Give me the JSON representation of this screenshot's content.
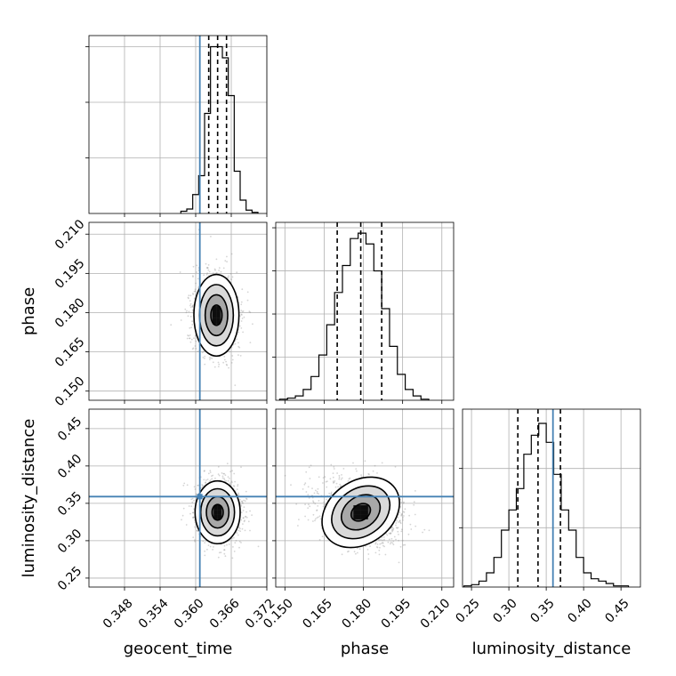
{
  "chart_data": {
    "type": "corner",
    "parameters": [
      "geocent_time",
      "phase",
      "luminosity_distance"
    ],
    "axis_labels": {
      "geocent_time": "geocent_time",
      "phase": "phase",
      "luminosity_distance": "luminosity_distance"
    },
    "ranges": {
      "geocent_time": [
        0.342,
        0.372
      ],
      "phase": [
        0.1465,
        0.2145
      ],
      "luminosity_distance": [
        0.238,
        0.476
      ]
    },
    "ticks": {
      "geocent_time": {
        "values": [
          0.348,
          0.354,
          0.36,
          0.366,
          0.372
        ],
        "labels": [
          "0.348",
          "0.354",
          "0.360",
          "0.366",
          "0.372"
        ]
      },
      "phase": {
        "values": [
          0.15,
          0.165,
          0.18,
          0.195,
          0.21
        ],
        "labels": [
          "0.150",
          "0.165",
          "0.180",
          "0.195",
          "0.210"
        ]
      },
      "luminosity_distance": {
        "values": [
          0.25,
          0.3,
          0.35,
          0.4,
          0.45
        ],
        "labels": [
          "0.25",
          "0.30",
          "0.35",
          "0.40",
          "0.45"
        ]
      }
    },
    "truths": {
      "geocent_time": 0.3607,
      "luminosity_distance": 0.359
    },
    "truth_color": "#4682b4",
    "quantiles": {
      "geocent_time": [
        0.3622,
        0.3637,
        0.3652
      ],
      "phase": [
        0.17,
        0.179,
        0.187
      ],
      "luminosity_distance": [
        0.312,
        0.339,
        0.369
      ]
    },
    "histograms": {
      "geocent_time": {
        "x": [
          0.358,
          0.359,
          0.36,
          0.361,
          0.362,
          0.363,
          0.364,
          0.365,
          0.366,
          0.367,
          0.368,
          0.369,
          0.37
        ],
        "values": [
          2,
          4,
          17,
          34,
          90,
          150,
          150,
          140,
          106,
          38,
          12,
          3,
          1
        ],
        "ylim": [
          0,
          160
        ],
        "yticks": [
          50,
          100,
          150
        ]
      },
      "phase": {
        "x": [
          0.1495,
          0.1525,
          0.1555,
          0.1585,
          0.1615,
          0.1645,
          0.1675,
          0.1705,
          0.1735,
          0.1765,
          0.1795,
          0.1825,
          0.1855,
          0.1885,
          0.1915,
          0.1945,
          0.1975,
          0.2005,
          0.2035
        ],
        "values": [
          1,
          2,
          4,
          10,
          22,
          42,
          70,
          100,
          125,
          150,
          155,
          145,
          120,
          85,
          50,
          24,
          10,
          4,
          1
        ],
        "ylim": [
          0,
          165
        ],
        "yticks": [
          40,
          80,
          120,
          160
        ]
      },
      "luminosity_distance": {
        "x": [
          0.245,
          0.255,
          0.265,
          0.275,
          0.285,
          0.295,
          0.305,
          0.315,
          0.325,
          0.335,
          0.345,
          0.355,
          0.365,
          0.375,
          0.385,
          0.395,
          0.405,
          0.415,
          0.425,
          0.435,
          0.445,
          0.455
        ],
        "values": [
          1,
          2,
          5,
          12,
          25,
          48,
          65,
          83,
          112,
          128,
          138,
          122,
          95,
          65,
          48,
          25,
          12,
          7,
          5,
          3,
          1,
          1
        ],
        "ylim": [
          0,
          150
        ],
        "yticks": [
          50,
          100
        ]
      }
    },
    "scatter_panels": [
      {
        "x": "geocent_time",
        "y": "phase",
        "center": [
          0.3635,
          0.179
        ],
        "spread": [
          0.0019,
          0.0078
        ],
        "density_color": "#000000"
      },
      {
        "x": "geocent_time",
        "y": "luminosity_distance",
        "center": [
          0.3637,
          0.338
        ],
        "spread": [
          0.0019,
          0.021
        ],
        "density_color": "#000000"
      },
      {
        "x": "phase",
        "y": "luminosity_distance",
        "center": [
          0.179,
          0.338
        ],
        "spread": [
          0.008,
          0.021
        ],
        "density_color": "#000000"
      }
    ],
    "contour_levels": [
      "0.5",
      "1.0",
      "1.5",
      "2.0"
    ],
    "grid": true
  }
}
